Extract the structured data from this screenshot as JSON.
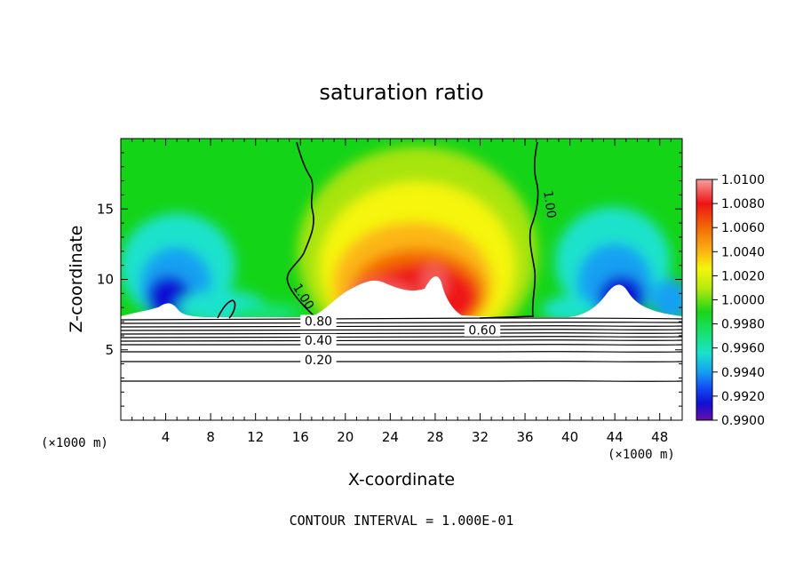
{
  "chart_data": {
    "type": "heatmap",
    "title": "saturation ratio",
    "xlabel": "X-coordinate",
    "ylabel": "Z-coordinate",
    "x_unit_label": "(×1000 m)",
    "y_unit_label": "(×1000 m)",
    "xlim": [
      0,
      50
    ],
    "ylim": [
      0,
      20
    ],
    "x_ticks": [
      4,
      8,
      12,
      16,
      20,
      24,
      28,
      32,
      36,
      40,
      44,
      48
    ],
    "y_ticks": [
      5,
      10,
      15
    ],
    "contour_interval_text": "CONTOUR INTERVAL = 1.000E-01",
    "colorbar": {
      "min": 0.99,
      "max": 1.01,
      "labels": [
        "1.0100",
        "1.0080",
        "1.0060",
        "1.0040",
        "1.0020",
        "1.0000",
        "0.9980",
        "0.9960",
        "0.9940",
        "0.9920",
        "0.9900"
      ]
    },
    "contour_labels": [
      {
        "text": "1.00",
        "x": 38.0,
        "z": 15.3,
        "angle": 82
      },
      {
        "text": "1.00",
        "x": 16.1,
        "z": 8.7,
        "angle": 58
      },
      {
        "text": "0.80",
        "x": 17.6,
        "z": 6.85,
        "angle": 0
      },
      {
        "text": "0.60",
        "x": 32.2,
        "z": 6.2,
        "angle": 0
      },
      {
        "text": "0.40",
        "x": 17.6,
        "z": 5.5,
        "angle": 0
      },
      {
        "text": "0.20",
        "x": 17.6,
        "z": 4.1,
        "angle": 0
      }
    ],
    "low_level_contours_z": [
      2.8,
      4.1,
      4.6,
      5.0,
      5.3,
      5.6,
      5.9,
      6.2,
      6.5,
      6.75,
      7.0
    ]
  }
}
